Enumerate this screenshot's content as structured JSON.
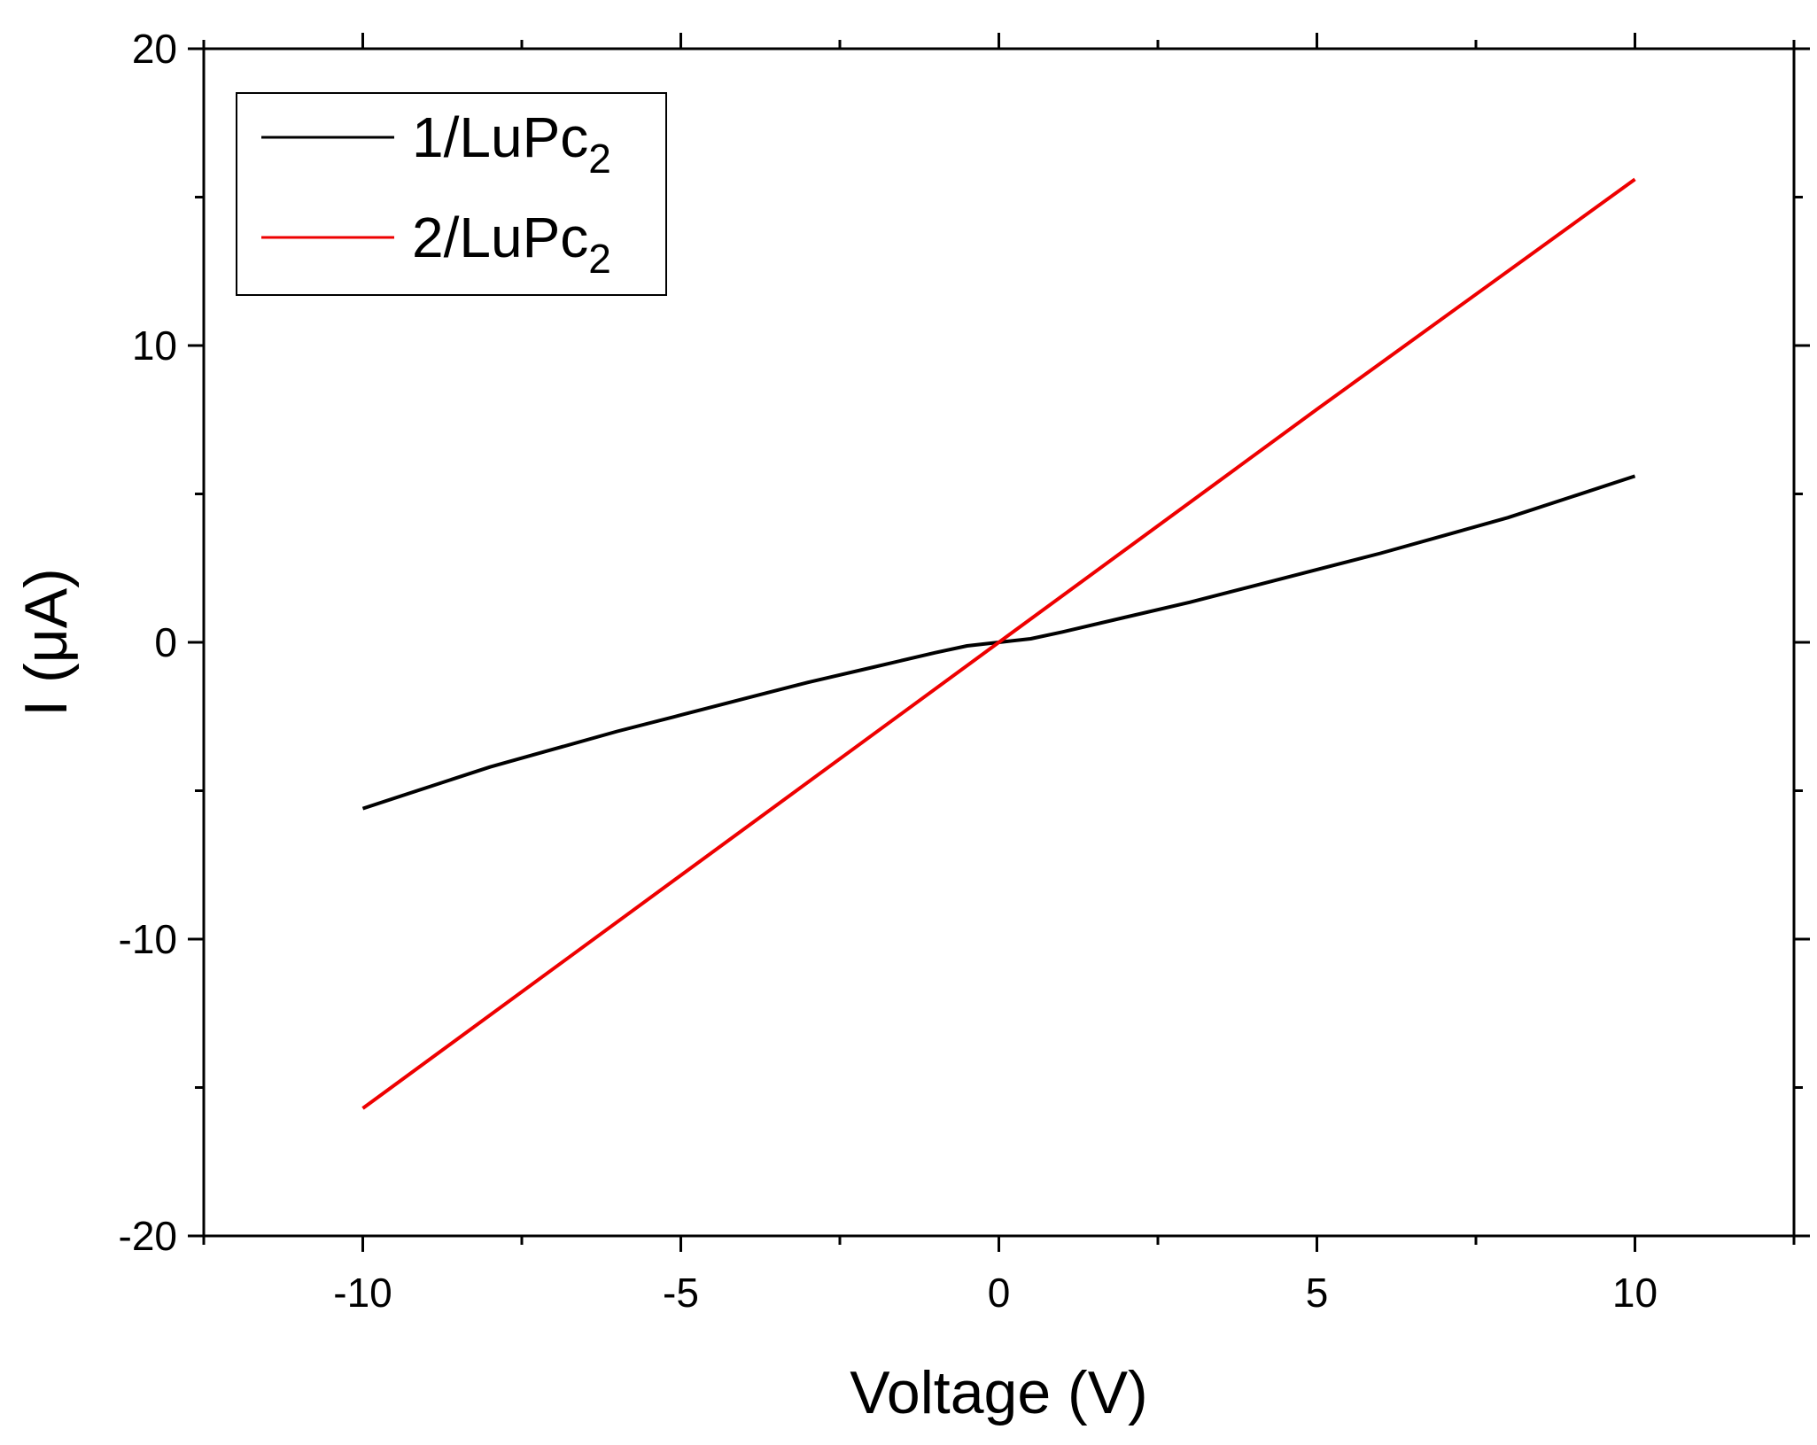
{
  "chart_data": {
    "type": "line",
    "xlabel": "Voltage (V)",
    "ylabel": "I (μA)",
    "xlim": [
      -12.5,
      12.5
    ],
    "ylim": [
      -20,
      20
    ],
    "x_ticks": [
      -10,
      -5,
      0,
      5,
      10
    ],
    "x_tick_labels": [
      "-10",
      "-5",
      "0",
      "5",
      "10"
    ],
    "y_ticks": [
      -20,
      -10,
      0,
      10,
      20
    ],
    "y_tick_labels": [
      "-20",
      "-10",
      "0",
      "10",
      "20"
    ],
    "x_minor_ticks": [
      -12.5,
      -7.5,
      -2.5,
      2.5,
      7.5,
      12.5
    ],
    "y_minor_ticks": [
      -15,
      -5,
      5,
      15
    ],
    "grid": false,
    "legend_position": "top-left",
    "series": [
      {
        "name": "1/LuPc",
        "name_subscript": "2",
        "color": "#000000",
        "x": [
          -10,
          -9,
          -8,
          -7,
          -6,
          -5,
          -4,
          -3,
          -2,
          -1,
          -0.5,
          0,
          0.5,
          1,
          2,
          3,
          4,
          5,
          6,
          7,
          8,
          9,
          10
        ],
        "y": [
          -5.6,
          -4.9,
          -4.2,
          -3.6,
          -3.0,
          -2.45,
          -1.9,
          -1.35,
          -0.85,
          -0.35,
          -0.12,
          0,
          0.12,
          0.35,
          0.85,
          1.35,
          1.9,
          2.45,
          3.0,
          3.6,
          4.2,
          4.9,
          5.6
        ]
      },
      {
        "name": "2/LuPc",
        "name_subscript": "2",
        "color": "#ee0000",
        "x": [
          -10,
          -5,
          0,
          5,
          10
        ],
        "y": [
          -15.7,
          -7.85,
          0,
          7.85,
          15.6
        ]
      }
    ]
  }
}
